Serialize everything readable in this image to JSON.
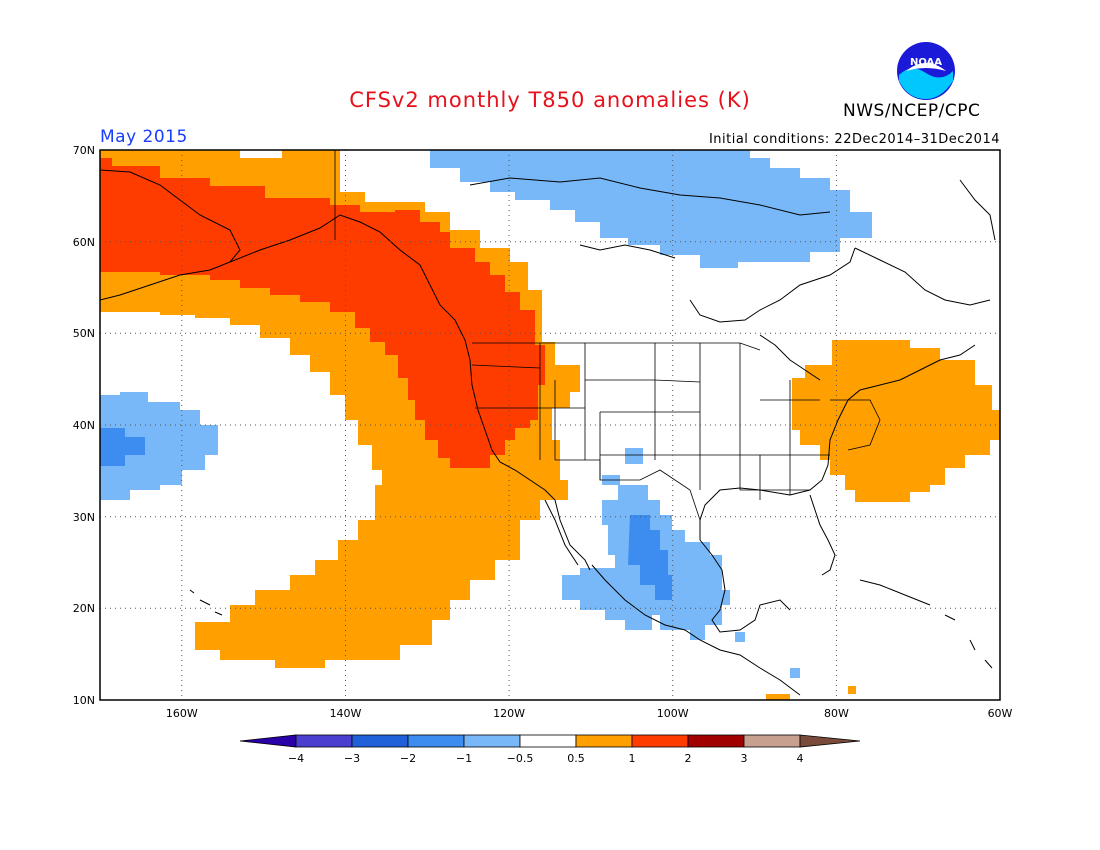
{
  "header": {
    "title": "CFSv2 monthly T850 anomalies (K)",
    "month": "May 2015",
    "initial_conditions": "Initial conditions: 22Dec2014–31Dec2014",
    "agency": "NWS/NCEP/CPC",
    "logo_text": "NOAA"
  },
  "axes": {
    "lat_labels": [
      "70N",
      "60N",
      "50N",
      "40N",
      "30N",
      "20N",
      "10N"
    ],
    "lon_labels": [
      "160W",
      "140W",
      "120W",
      "100W",
      "80W",
      "60W"
    ]
  },
  "colorbar": {
    "labels": [
      "−4",
      "−3",
      "−2",
      "−1",
      "−0.5",
      "0.5",
      "1",
      "2",
      "3",
      "4"
    ],
    "colors": [
      "#2a00a8",
      "#4b3fd0",
      "#2060d8",
      "#3d8cf0",
      "#78b8f8",
      "#ffffff",
      "#ff9f00",
      "#ff3c00",
      "#a00000",
      "#c8a090",
      "#7a4a3a"
    ]
  },
  "colors": {
    "title": "#e8101a",
    "month": "#1a3cff",
    "warm1": "#ff9f00",
    "warm2": "#ff3c00",
    "cool1": "#78b8f8",
    "cool2": "#3d8cf0"
  }
}
